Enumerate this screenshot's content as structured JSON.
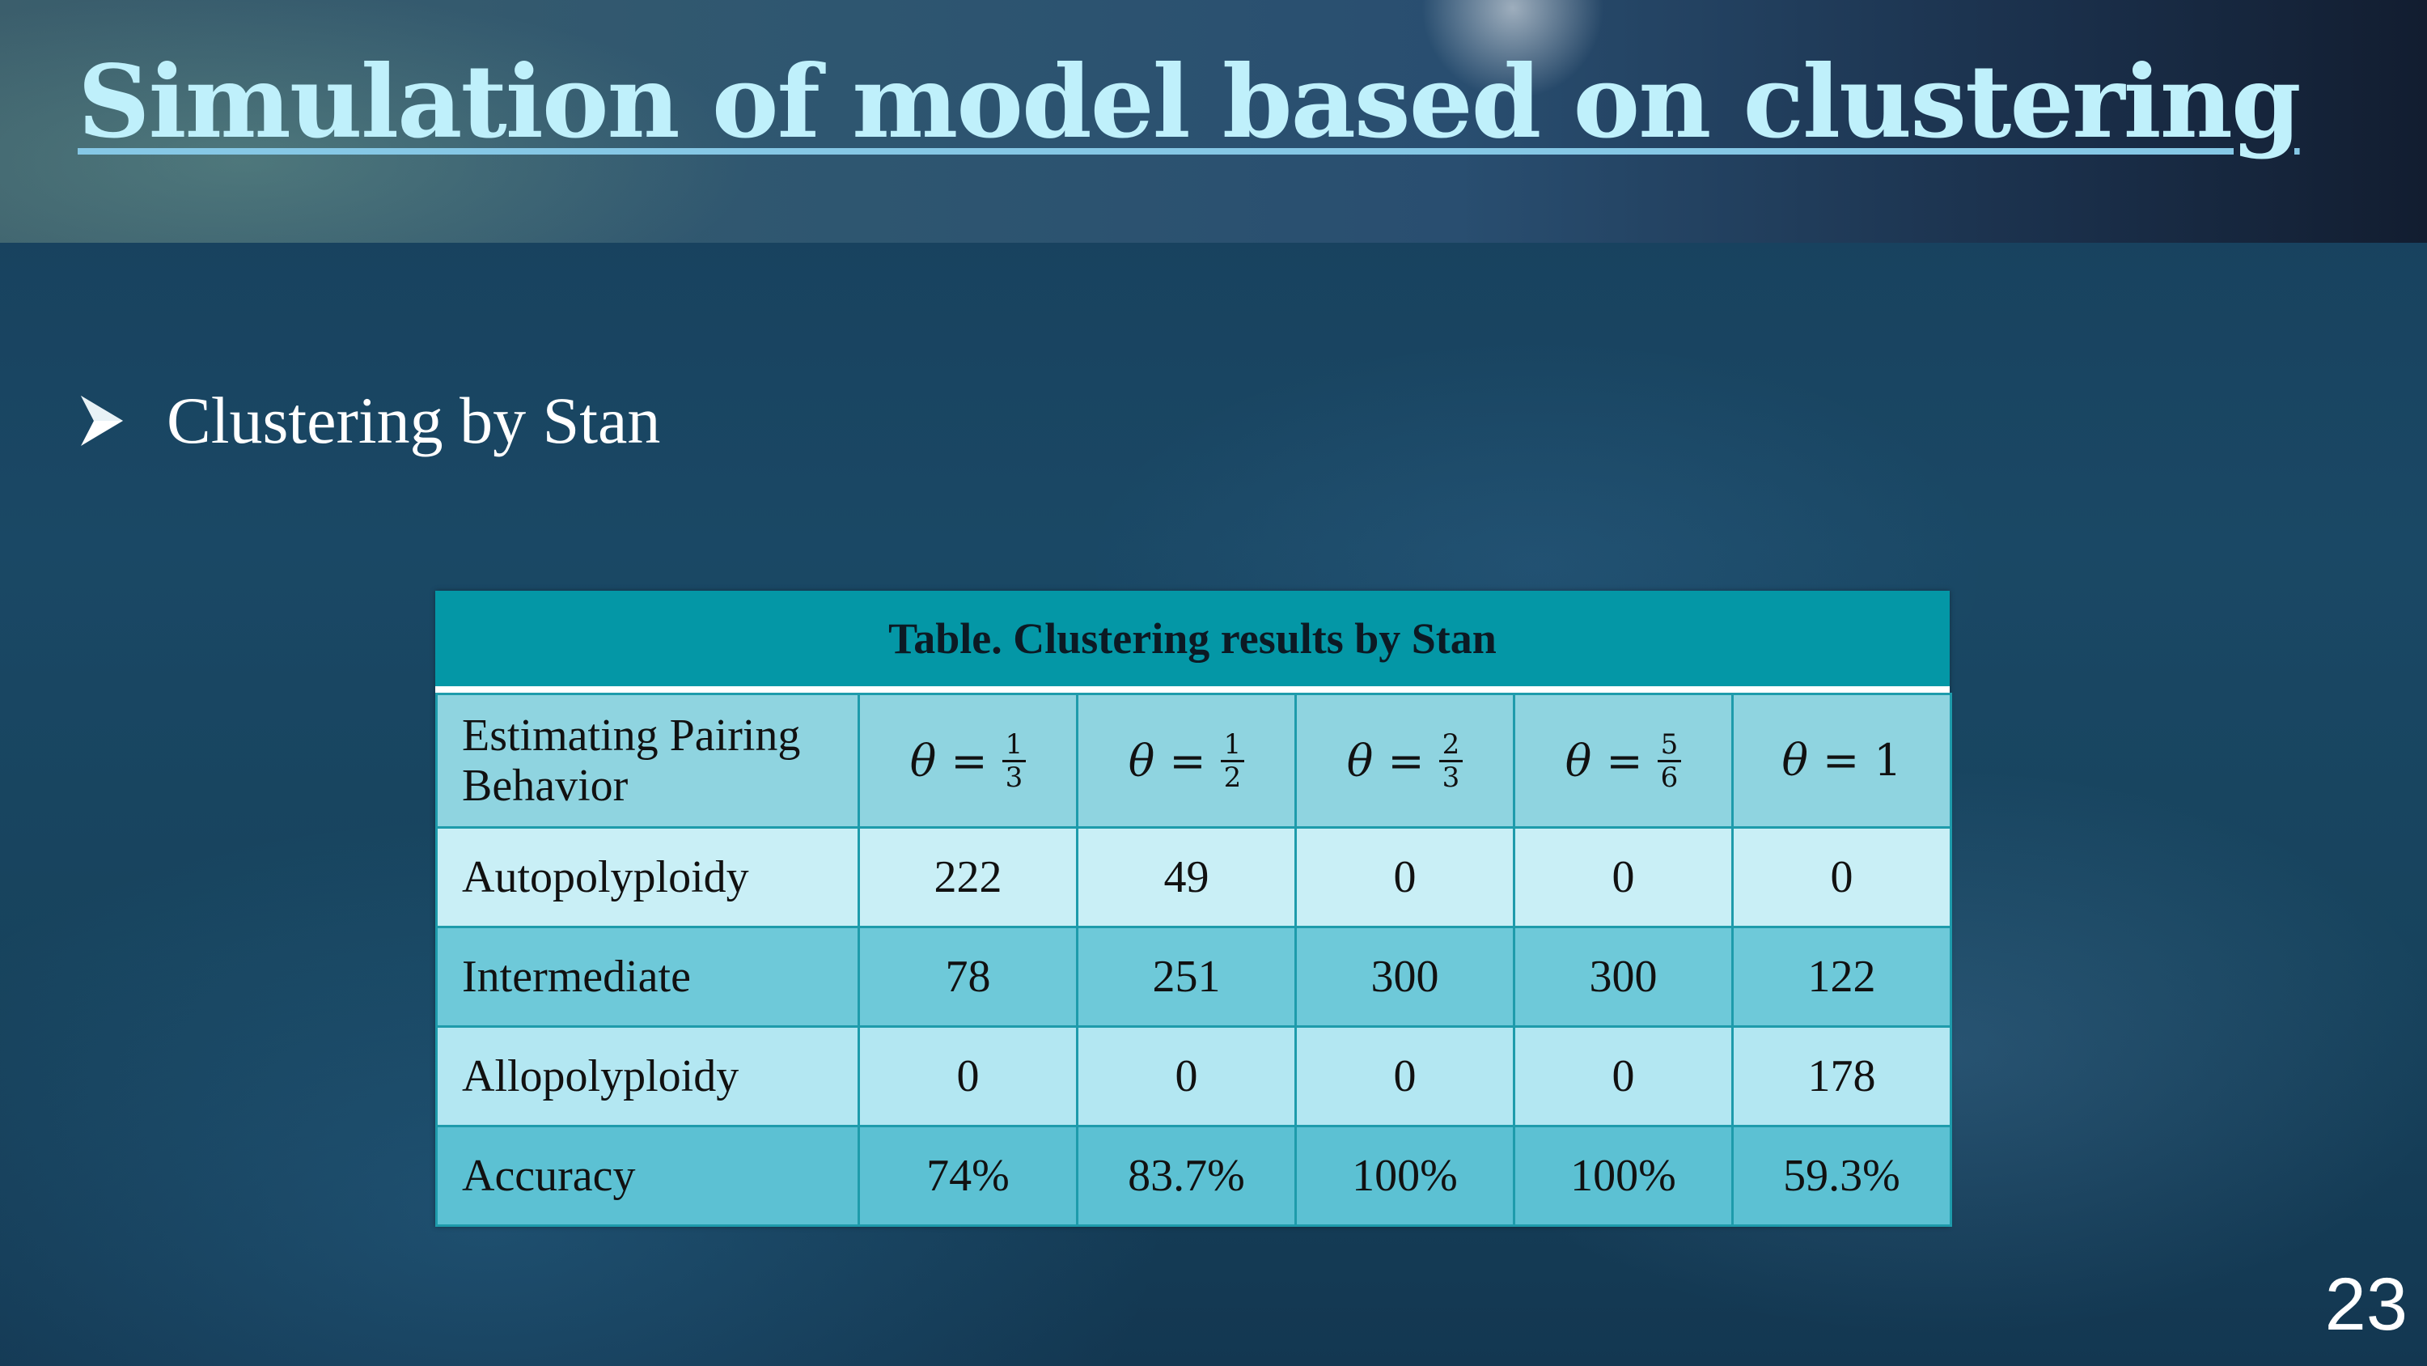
{
  "slide": {
    "title": "Simulation of model based on clustering",
    "bullet": "Clustering by Stan",
    "page_number": "23"
  },
  "table": {
    "caption": "Table. Clustering results by Stan",
    "corner_label": "Estimating Pairing Behavior",
    "theta_symbol": "θ",
    "equals": "=",
    "columns": [
      {
        "num": "1",
        "den": "3"
      },
      {
        "num": "1",
        "den": "2"
      },
      {
        "num": "2",
        "den": "3"
      },
      {
        "num": "5",
        "den": "6"
      },
      {
        "value": "1"
      }
    ],
    "rows": [
      {
        "label": "Autopolyploidy",
        "values": [
          "222",
          "49",
          "0",
          "0",
          "0"
        ]
      },
      {
        "label": "Intermediate",
        "values": [
          "78",
          "251",
          "300",
          "300",
          "122"
        ]
      },
      {
        "label": "Allopolyploidy",
        "values": [
          "0",
          "0",
          "0",
          "0",
          "178"
        ]
      },
      {
        "label": "Accuracy",
        "values": [
          "74%",
          "83.7%",
          "100%",
          "100%",
          "59.3%"
        ]
      }
    ]
  },
  "colors": {
    "title": "#bff0fb",
    "caption_bg": "#0497a6",
    "header_bg": "#8fd4e0"
  },
  "icons": {
    "bullet": "arrowhead-bullet-icon"
  }
}
